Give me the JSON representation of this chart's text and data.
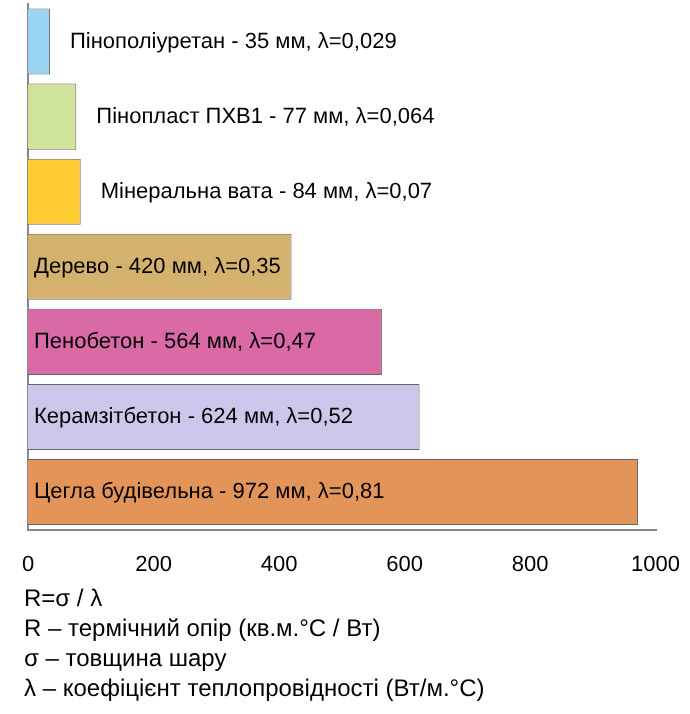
{
  "chart_data": {
    "type": "bar",
    "orientation": "horizontal",
    "categories": [
      "Пінополіуретан - 35 мм, λ=0,029",
      "Пінопласт ПХВ1 - 77 мм, λ=0,064",
      "Мінеральна вата - 84 мм, λ=0,07",
      "Дерево - 420 мм, λ=0,35",
      "Пенобетон - 564 мм, λ=0,47",
      "Керамзітбетон - 624 мм, λ=0,52",
      "Цегла будівельна - 972 мм, λ=0,81"
    ],
    "values": [
      35,
      77,
      84,
      420,
      564,
      624,
      972
    ],
    "colors": [
      "#99d5f2",
      "#cfe39a",
      "#ffcc33",
      "#d4b26e",
      "#d96aa6",
      "#cdc6ea",
      "#e39458"
    ],
    "xlim": [
      0,
      1000
    ],
    "xticks": [
      0,
      200,
      400,
      600,
      800,
      1000
    ],
    "grid": false,
    "legend": false,
    "annotations": [
      "R=σ / λ",
      "R – термічний опір (кв.м.°С / Вт)",
      "σ – товщина шару",
      "λ – коефіцієнт теплопровідності (Вт/м.°С)"
    ]
  }
}
